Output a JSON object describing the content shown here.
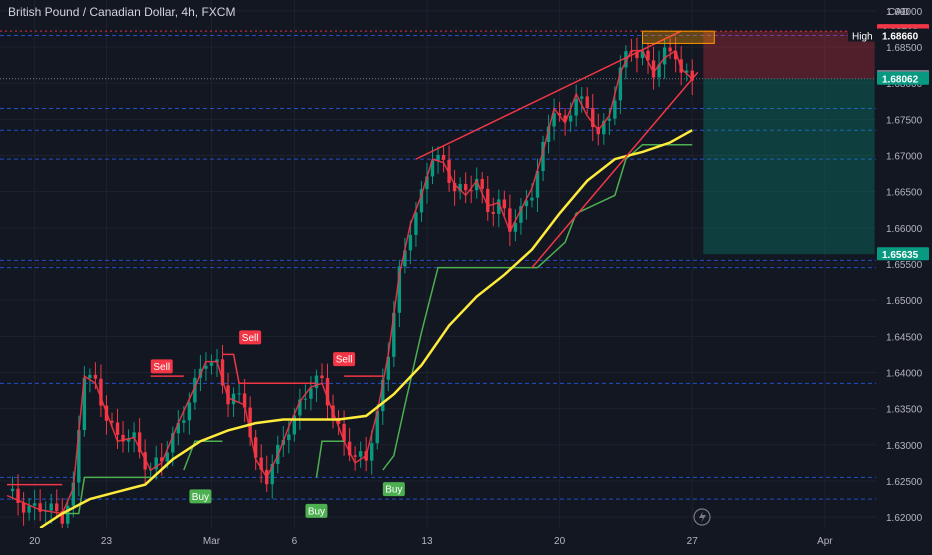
{
  "chart_data": {
    "type": "line",
    "title": "British Pound / Canadian Dollar, 4h, FXCM",
    "currency": "CAD",
    "ylim": [
      1.6185,
      1.6915
    ],
    "y_ticks": [
      1.62,
      1.625,
      1.63,
      1.635,
      1.64,
      1.645,
      1.65,
      1.655,
      1.66,
      1.665,
      1.67,
      1.675,
      1.68,
      1.685,
      1.69
    ],
    "y_tick_labels": [
      "1.62000",
      "1.62500",
      "1.63000",
      "1.63500",
      "1.64000",
      "1.64500",
      "1.65000",
      "1.65500",
      "1.66000",
      "1.66500",
      "1.67000",
      "1.67500",
      "1.68000",
      "1.68500",
      "1.69000"
    ],
    "x_ticks": [
      {
        "label": "20",
        "i": 5
      },
      {
        "label": "23",
        "i": 18
      },
      {
        "label": "Mar",
        "i": 37
      },
      {
        "label": "6",
        "i": 52
      },
      {
        "label": "13",
        "i": 76
      },
      {
        "label": "20",
        "i": 100
      },
      {
        "label": "27",
        "i": 124
      },
      {
        "label": "Apr",
        "i": 148
      }
    ],
    "n_bars": 125,
    "price_series": {
      "name": "GBP/CAD",
      "key_points": [
        [
          0,
          1.623
        ],
        [
          6,
          1.621
        ],
        [
          10,
          1.6205
        ],
        [
          12,
          1.624
        ],
        [
          14,
          1.6395
        ],
        [
          16,
          1.6385
        ],
        [
          18,
          1.6345
        ],
        [
          20,
          1.6305
        ],
        [
          23,
          1.631
        ],
        [
          26,
          1.6265
        ],
        [
          28,
          1.6275
        ],
        [
          31,
          1.633
        ],
        [
          34,
          1.638
        ],
        [
          36,
          1.6415
        ],
        [
          38,
          1.6415
        ],
        [
          40,
          1.6365
        ],
        [
          43,
          1.6355
        ],
        [
          45,
          1.628
        ],
        [
          47,
          1.6255
        ],
        [
          49,
          1.6285
        ],
        [
          51,
          1.6325
        ],
        [
          53,
          1.636
        ],
        [
          55,
          1.638
        ],
        [
          57,
          1.6385
        ],
        [
          59,
          1.6345
        ],
        [
          61,
          1.6305
        ],
        [
          63,
          1.6275
        ],
        [
          65,
          1.6285
        ],
        [
          67,
          1.6345
        ],
        [
          69,
          1.6425
        ],
        [
          71,
          1.6535
        ],
        [
          73,
          1.6605
        ],
        [
          75,
          1.6645
        ],
        [
          77,
          1.6695
        ],
        [
          79,
          1.669
        ],
        [
          81,
          1.666
        ],
        [
          83,
          1.6645
        ],
        [
          85,
          1.6665
        ],
        [
          87,
          1.663
        ],
        [
          89,
          1.6635
        ],
        [
          91,
          1.6595
        ],
        [
          93,
          1.6625
        ],
        [
          95,
          1.6655
        ],
        [
          97,
          1.6705
        ],
        [
          99,
          1.6765
        ],
        [
          101,
          1.6745
        ],
        [
          103,
          1.6785
        ],
        [
          105,
          1.6755
        ],
        [
          107,
          1.6735
        ],
        [
          109,
          1.6755
        ],
        [
          111,
          1.6815
        ],
        [
          113,
          1.6845
        ],
        [
          115,
          1.6845
        ],
        [
          117,
          1.6815
        ],
        [
          119,
          1.6835
        ],
        [
          121,
          1.6845
        ],
        [
          122,
          1.682
        ],
        [
          124,
          1.6806
        ]
      ]
    },
    "ma_series": {
      "name": "MA",
      "color": "#ffeb3b",
      "key_points": [
        [
          6,
          1.6185
        ],
        [
          10,
          1.6205
        ],
        [
          15,
          1.6225
        ],
        [
          20,
          1.6235
        ],
        [
          25,
          1.6245
        ],
        [
          30,
          1.628
        ],
        [
          35,
          1.6305
        ],
        [
          40,
          1.632
        ],
        [
          45,
          1.633
        ],
        [
          50,
          1.6335
        ],
        [
          55,
          1.6335
        ],
        [
          60,
          1.6335
        ],
        [
          65,
          1.634
        ],
        [
          70,
          1.637
        ],
        [
          75,
          1.641
        ],
        [
          80,
          1.6465
        ],
        [
          85,
          1.6505
        ],
        [
          90,
          1.6535
        ],
        [
          95,
          1.657
        ],
        [
          100,
          1.662
        ],
        [
          105,
          1.6665
        ],
        [
          110,
          1.6695
        ],
        [
          115,
          1.6705
        ],
        [
          120,
          1.6718
        ],
        [
          124,
          1.6735
        ]
      ]
    },
    "supertrend": {
      "up_color": "#4caf50",
      "down_color": "#f23645",
      "segments": [
        {
          "dir": "down",
          "points": [
            [
              0,
              1.6245
            ],
            [
              10,
              1.6245
            ]
          ]
        },
        {
          "dir": "up",
          "points": [
            [
              10,
              1.6205
            ],
            [
              13,
              1.6205
            ],
            [
              14,
              1.6255
            ],
            [
              26,
              1.6255
            ]
          ]
        },
        {
          "dir": "down",
          "points": [
            [
              26,
              1.6395
            ],
            [
              32,
              1.6395
            ]
          ]
        },
        {
          "dir": "up",
          "points": [
            [
              32,
              1.6265
            ],
            [
              34,
              1.6305
            ],
            [
              39,
              1.6305
            ]
          ]
        },
        {
          "dir": "down",
          "points": [
            [
              39,
              1.6425
            ],
            [
              41,
              1.6425
            ],
            [
              42,
              1.6385
            ],
            [
              56,
              1.6385
            ]
          ]
        },
        {
          "dir": "up",
          "points": [
            [
              56,
              1.6255
            ],
            [
              57,
              1.6305
            ],
            [
              61,
              1.6305
            ]
          ]
        },
        {
          "dir": "down",
          "points": [
            [
              61,
              1.6395
            ],
            [
              68,
              1.6395
            ]
          ]
        },
        {
          "dir": "up",
          "points": [
            [
              68,
              1.6265
            ],
            [
              70,
              1.6285
            ],
            [
              72,
              1.6355
            ],
            [
              75,
              1.6455
            ],
            [
              78,
              1.6545
            ],
            [
              81,
              1.6545
            ],
            [
              96,
              1.6545
            ],
            [
              101,
              1.658
            ],
            [
              103,
              1.662
            ],
            [
              110,
              1.6645
            ],
            [
              112,
              1.6695
            ],
            [
              115,
              1.6715
            ],
            [
              124,
              1.6715
            ]
          ]
        }
      ]
    },
    "signals": [
      {
        "type": "Sell",
        "i": 28,
        "price": 1.6385
      },
      {
        "type": "Buy",
        "i": 35,
        "price": 1.6255
      },
      {
        "type": "Sell",
        "i": 44,
        "price": 1.6425
      },
      {
        "type": "Buy",
        "i": 56,
        "price": 1.6235
      },
      {
        "type": "Sell",
        "i": 61,
        "price": 1.6395
      },
      {
        "type": "Buy",
        "i": 70,
        "price": 1.6265
      }
    ],
    "horizontal_levels": [
      {
        "price": 1.6866,
        "color": "#2962ff",
        "style": "dashed"
      },
      {
        "price": 1.6765,
        "color": "#2962ff",
        "style": "dashed"
      },
      {
        "price": 1.6735,
        "color": "#2962ff",
        "style": "dashed"
      },
      {
        "price": 1.6695,
        "color": "#2962ff",
        "style": "dashed"
      },
      {
        "price": 1.6555,
        "color": "#2962ff",
        "style": "dashed"
      },
      {
        "price": 1.6545,
        "color": "#2962ff",
        "style": "dashed"
      },
      {
        "price": 1.6385,
        "color": "#2962ff",
        "style": "dashed"
      },
      {
        "price": 1.6255,
        "color": "#2962ff",
        "style": "dashed"
      },
      {
        "price": 1.6225,
        "color": "#2962ff",
        "style": "dashed"
      },
      {
        "price": 1.6872,
        "color": "#f23645",
        "style": "dotted"
      }
    ],
    "trendlines": [
      {
        "from": [
          74,
          1.6695
        ],
        "to": [
          122,
          1.6872
        ],
        "color": "#f23645"
      },
      {
        "from": [
          95,
          1.6545
        ],
        "to": [
          125,
          1.6815
        ],
        "color": "#f23645"
      }
    ],
    "short_position": {
      "from_i": 126,
      "to_i": 157,
      "stop": 1.68719,
      "entry": 1.68062,
      "target": 1.65635
    },
    "price_labels": [
      {
        "text": "1.68719",
        "price": 1.68719,
        "bg": "#f23645",
        "fg": "#ffffff"
      },
      {
        "text": "1.68660",
        "price": 1.6866,
        "bg": "#131722",
        "fg": "#ffffff",
        "tag": "High"
      },
      {
        "text": "1.68085",
        "price": 1.68085,
        "bg": "#787b86",
        "fg": "#ffffff"
      },
      {
        "text": "1.68062",
        "price": 1.68062,
        "bg": "#089981",
        "fg": "#ffffff"
      },
      {
        "text": "1.65635",
        "price": 1.65635,
        "bg": "#089981",
        "fg": "#ffffff"
      }
    ]
  }
}
